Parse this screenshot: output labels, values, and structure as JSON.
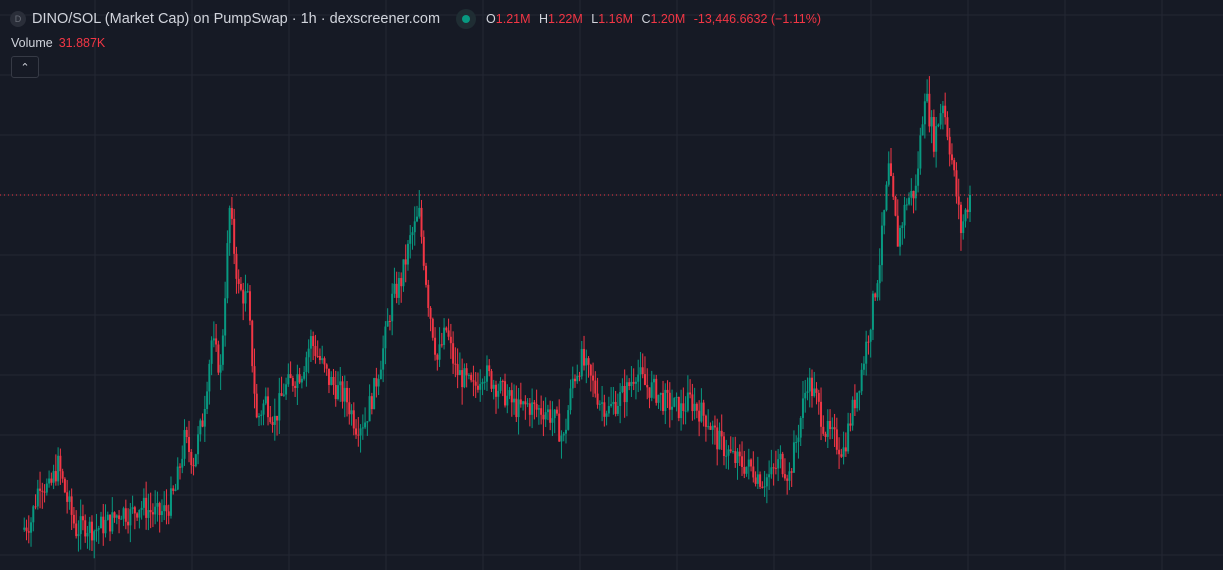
{
  "header": {
    "symbol_icon_letter": "D",
    "title": "DINO/SOL (Market Cap) on PumpSwap · 1h · dexscreener.com",
    "status_icon": "market-open-dot",
    "ohlc": {
      "o_label": "O",
      "o": "1.21M",
      "h_label": "H",
      "h": "1.22M",
      "l_label": "L",
      "l": "1.16M",
      "c_label": "C",
      "c": "1.20M",
      "change": "-13,446.6632 (−1.11%)"
    },
    "volume_label": "Volume",
    "volume": "31.887K",
    "collapse_icon": "chevron-up-icon"
  },
  "colors": {
    "background": "#161a25",
    "grid": "#242833",
    "up": "#089981",
    "down": "#f23645",
    "price_line": "#f23645"
  },
  "chart_data": {
    "type": "candlestick",
    "unit": "market cap (M)",
    "grid": true,
    "last_price": 1.2,
    "closes": [
      0.642,
      0.658,
      0.725,
      0.708,
      0.75,
      0.692,
      0.642,
      0.65,
      0.642,
      0.65,
      0.658,
      0.675,
      0.667,
      0.683,
      0.675,
      0.667,
      0.675,
      0.708,
      0.792,
      0.758,
      0.825,
      0.958,
      0.908,
      1.175,
      1.042,
      1.025,
      0.825,
      0.858,
      0.825,
      0.875,
      0.892,
      0.908,
      0.958,
      0.925,
      0.892,
      0.875,
      0.858,
      0.817,
      0.825,
      0.875,
      0.942,
      1.025,
      1.058,
      1.125,
      1.167,
      1.025,
      0.925,
      0.975,
      0.908,
      0.892,
      0.875,
      0.908,
      0.892,
      0.875,
      0.858,
      0.842,
      0.85,
      0.842,
      0.842,
      0.825,
      0.792,
      0.892,
      0.925,
      0.892,
      0.858,
      0.842,
      0.858,
      0.875,
      0.908,
      0.883,
      0.875,
      0.858,
      0.85,
      0.842,
      0.858,
      0.842,
      0.825,
      0.792,
      0.775,
      0.758,
      0.75,
      0.742,
      0.725,
      0.733,
      0.758,
      0.733,
      0.808,
      0.892,
      0.858,
      0.808,
      0.792,
      0.775,
      0.842,
      0.908,
      0.992,
      1.092,
      1.242,
      1.125,
      1.192,
      1.208,
      1.375,
      1.292,
      1.358,
      1.258,
      1.142,
      1.2
    ]
  }
}
